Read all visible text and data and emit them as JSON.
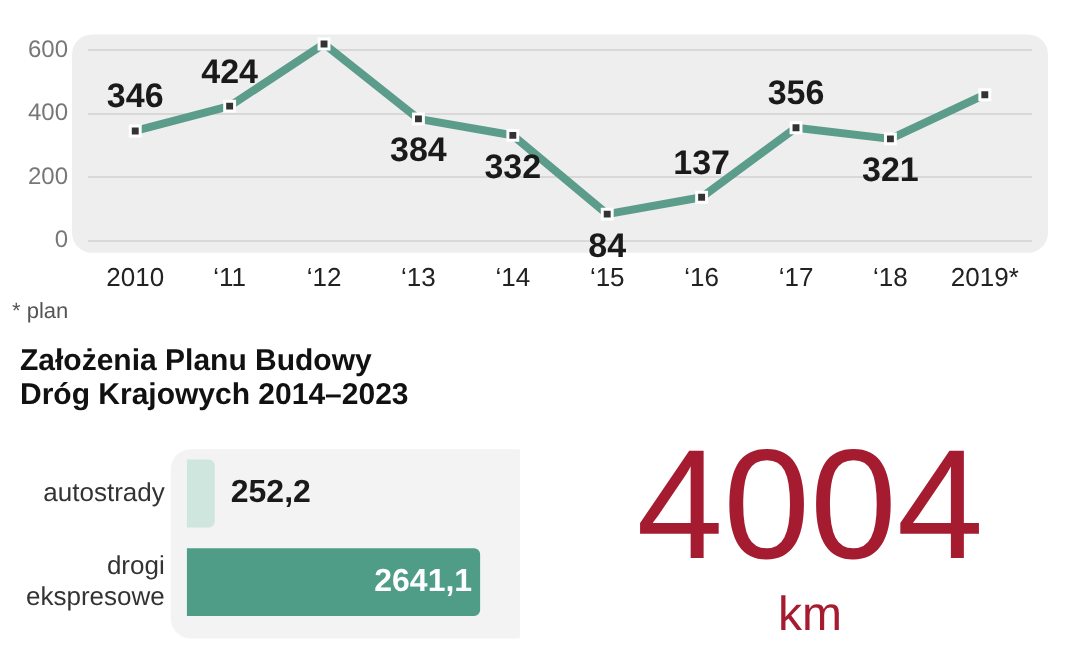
{
  "chart_data": [
    {
      "type": "line",
      "categories": [
        "2010",
        "‘11",
        "‘12",
        "‘13",
        "‘14",
        "‘15",
        "‘16",
        "‘17",
        "‘18",
        "2019*"
      ],
      "values": [
        346,
        424,
        620,
        384,
        332,
        84,
        137,
        356,
        321,
        460
      ],
      "value_labels": [
        "346",
        "424",
        null,
        "384",
        "332",
        "84",
        "137",
        "356",
        "321",
        null
      ],
      "color": "#5b9c8a",
      "ylim": [
        0,
        650
      ],
      "yticks": [
        0,
        200,
        400,
        600
      ],
      "grid": "y",
      "marker": "square",
      "annotations": [
        "* plan"
      ]
    },
    {
      "type": "bar",
      "orientation": "horizontal",
      "title": "Założenia Planu Budowy Dróg Krajowych 2014–2023",
      "categories": [
        "autostrady",
        "drogi ekspresowe"
      ],
      "values": [
        252.2,
        2641.1
      ],
      "colors": [
        "#cfe6de",
        "#4f9c87"
      ],
      "value_labels": [
        "252,2",
        "2641,1"
      ],
      "tick_labels": "y"
    },
    {
      "type": "other",
      "title": "4004",
      "annotations": [
        "km"
      ]
    }
  ]
}
